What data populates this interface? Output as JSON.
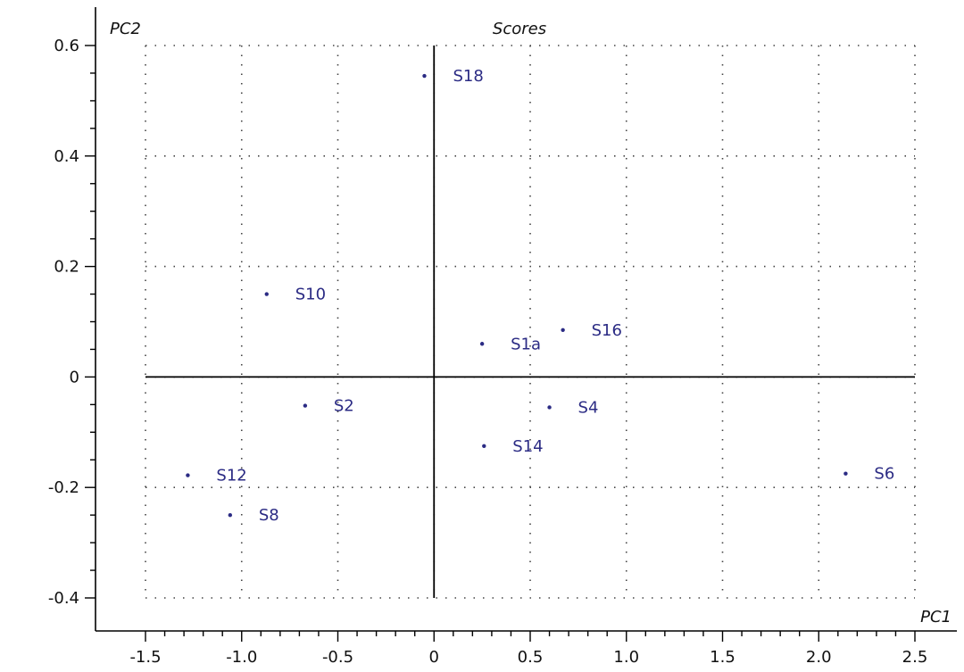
{
  "chart_data": {
    "type": "scatter",
    "title": "Scores",
    "xlabel": "PC1",
    "ylabel": "PC2",
    "xlim": [
      -1.5,
      2.5
    ],
    "ylim": [
      -0.4,
      0.6
    ],
    "x_ticks": [
      "-1.5",
      "-1.0",
      "-0.5",
      "0",
      "0.5",
      "1.0",
      "1.5",
      "2.0",
      "2.5"
    ],
    "y_ticks": [
      "-0.4",
      "-0.2",
      "0",
      "0.2",
      "0.4",
      "0.6"
    ],
    "grid": true,
    "point_color": "#2b2b84",
    "points": [
      {
        "label": "S18",
        "x": -0.05,
        "y": 0.545
      },
      {
        "label": "S10",
        "x": -0.87,
        "y": 0.15
      },
      {
        "label": "S16",
        "x": 0.67,
        "y": 0.085
      },
      {
        "label": "S1a",
        "x": 0.25,
        "y": 0.06
      },
      {
        "label": "S2",
        "x": -0.67,
        "y": -0.052
      },
      {
        "label": "S4",
        "x": 0.6,
        "y": -0.055
      },
      {
        "label": "S14",
        "x": 0.26,
        "y": -0.125
      },
      {
        "label": "S12",
        "x": -1.28,
        "y": -0.178
      },
      {
        "label": "S6",
        "x": 2.14,
        "y": -0.175
      },
      {
        "label": "S8",
        "x": -1.06,
        "y": -0.25
      }
    ]
  }
}
